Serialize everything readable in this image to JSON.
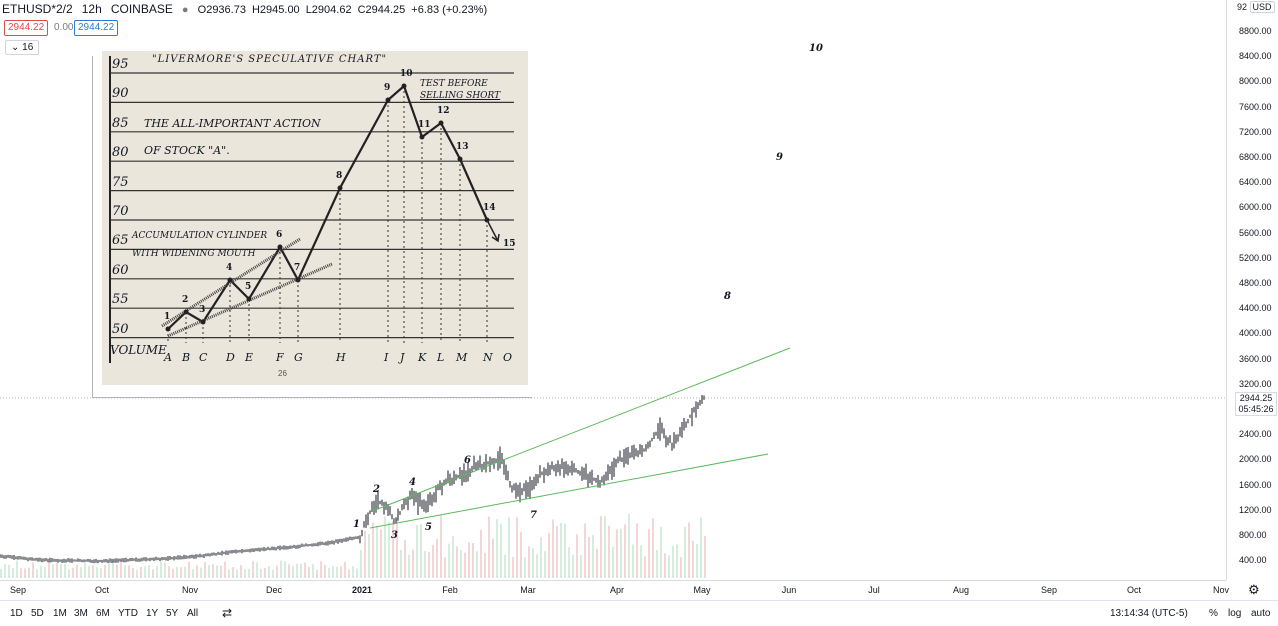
{
  "header": {
    "symbol": "ETHUSD*2/2",
    "interval": "12h",
    "exchange": "COINBASE",
    "open": "O2936.73",
    "high": "H2945.00",
    "low": "L2904.62",
    "close": "C2944.25",
    "change": "+6.83 (+0.23%)",
    "sell_price": "2944.22",
    "spread": "0.00",
    "buy_price": "2944.22",
    "indicator_count": "16"
  },
  "price_axis": {
    "currency": "USD",
    "top_value": "92",
    "ticks": [
      "8800.00",
      "8400.00",
      "8000.00",
      "7600.00",
      "7200.00",
      "6800.00",
      "6400.00",
      "6000.00",
      "5600.00",
      "5200.00",
      "4800.00",
      "4400.00",
      "4000.00",
      "3600.00",
      "3200.00",
      "2800.00",
      "2400.00",
      "2000.00",
      "1600.00",
      "1200.00",
      "800.00",
      "400.00"
    ],
    "last_price": "2944.25",
    "countdown": "05:45:26"
  },
  "time_axis": {
    "labels": [
      "Sep",
      "Oct",
      "Nov",
      "Dec",
      "2021",
      "Feb",
      "Mar",
      "Apr",
      "May",
      "Jun",
      "Jul",
      "Aug",
      "Sep",
      "Oct",
      "Nov"
    ]
  },
  "bottom_bar": {
    "ranges": [
      "1D",
      "5D",
      "1M",
      "3M",
      "6M",
      "YTD",
      "1Y",
      "5Y",
      "All"
    ],
    "clock": "13:14:34 (UTC-5)",
    "percent": "%",
    "log": "log",
    "auto": "auto"
  },
  "wave_labels": {
    "w1": "1",
    "w2": "2",
    "w3": "3",
    "w4": "4",
    "w5": "5",
    "w6": "6",
    "w7": "7",
    "w8": "8",
    "w9": "9",
    "w10": "10"
  },
  "inset": {
    "title": "\"LIVERMORE'S SPECULATIVE CHART\"",
    "subtitle1": "THE ALL-IMPORTANT ACTION",
    "subtitle2": "OF STOCK \"A\".",
    "note1": "TEST BEFORE",
    "note2": "SELLING SHORT",
    "cyl1": "ACCUMULATION CYLINDER",
    "cyl2": "WITH WIDENING MOUTH",
    "yticks": [
      "95",
      "90",
      "85",
      "80",
      "75",
      "70",
      "65",
      "60",
      "55",
      "50"
    ],
    "volume": "VOLUME",
    "letters": [
      "A",
      "B",
      "C",
      "D",
      "E",
      "F",
      "G",
      "H",
      "I",
      "J",
      "K",
      "L",
      "M",
      "N",
      "O"
    ],
    "points": [
      "1",
      "2",
      "3",
      "4",
      "5",
      "6",
      "7",
      "8",
      "9",
      "10",
      "11",
      "12",
      "13",
      "14",
      "15"
    ],
    "page_num": "26"
  },
  "colors": {
    "sell": "#e5484d",
    "buy": "#2a7fd4",
    "trendline": "#5cb85c",
    "candles": "#131722"
  }
}
